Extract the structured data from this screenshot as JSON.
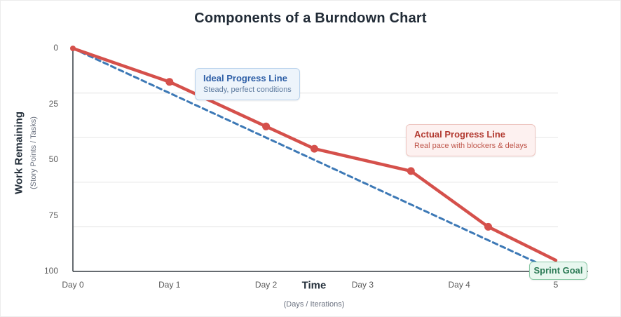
{
  "title": "Components of a Burndown Chart",
  "colors": {
    "ideal_line": "#3d79b6",
    "actual_line": "#d5504b",
    "grid": "#e8e8e8",
    "axis": "#343a40",
    "tick_text": "#5a5a5a"
  },
  "y_axis": {
    "title": "Work Remaining",
    "subtitle": "(Story Points / Tasks)",
    "ticks": [
      0,
      25,
      50,
      75,
      100
    ]
  },
  "x_axis": {
    "title": "Time",
    "subtitle": "(Days / Iterations)",
    "tick_labels": [
      "Day 0",
      "Day 1",
      "Day 2",
      "Day 3",
      "Day 4",
      "5"
    ],
    "tick_days": [
      0,
      1,
      2,
      3,
      4,
      5
    ]
  },
  "annotations": {
    "ideal": {
      "title": "Ideal Progress Line",
      "subtitle": "Steady, perfect conditions"
    },
    "actual": {
      "title": "Actual Progress Line",
      "subtitle": "Real pace with blockers & delays"
    },
    "sprint_goal": {
      "label": "Sprint Goal"
    }
  },
  "chart_data": {
    "type": "line",
    "title": "Components of a Burndown Chart",
    "xlabel": "Time (Days / Iterations)",
    "ylabel": "Work Remaining (Story Points / Tasks)",
    "x_tick_labels": [
      "Day 0",
      "Day 1",
      "Day 2",
      "Day 3",
      "Day 4",
      "5"
    ],
    "y_ticks": [
      0,
      25,
      50,
      75,
      100
    ],
    "y_axis_inverted_zero_at_top": true,
    "ylim": [
      0,
      100
    ],
    "xlim_days": [
      0,
      5
    ],
    "grid": "horizontal only",
    "gridline_values": [
      20,
      40,
      60,
      80
    ],
    "legend_position": "none (inline annotation cards)",
    "series": [
      {
        "name": "Ideal Progress Line",
        "style": "dashed",
        "color": "#3d79b6",
        "markers": false,
        "x": [
          0,
          5
        ],
        "values": [
          0,
          100
        ]
      },
      {
        "name": "Actual Progress Line",
        "style": "solid",
        "color": "#d5504b",
        "markers": true,
        "x": [
          0,
          1,
          2,
          2.5,
          3.5,
          4.3,
          5
        ],
        "values": [
          0,
          15,
          35,
          45,
          55,
          80,
          95
        ]
      }
    ]
  }
}
